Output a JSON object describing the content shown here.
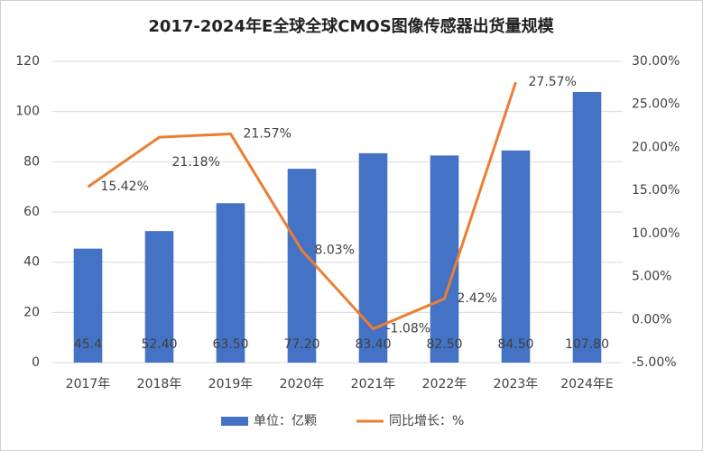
{
  "chart_data": {
    "type": "bar",
    "title": "2017-2024年E全球全球CMOS图像传感器出货量规模",
    "categories": [
      "2017年",
      "2018年",
      "2019年",
      "2020年",
      "2021年",
      "2022年",
      "2023年",
      "2024年E"
    ],
    "series": [
      {
        "name": "单位：亿颗",
        "color": "#4472c4",
        "type": "bar",
        "values": [
          45.4,
          52.4,
          63.5,
          77.2,
          83.4,
          82.5,
          84.5,
          107.8
        ],
        "value_labels": [
          "45.4",
          "52.40",
          "63.50",
          "77.20",
          "83.40",
          "82.50",
          "84.50",
          "107.80"
        ]
      },
      {
        "name": "同比增长：%",
        "color": "#ed7d31",
        "type": "line",
        "axis": "y2",
        "values": [
          15.42,
          21.18,
          21.57,
          8.03,
          -1.08,
          2.42,
          27.57,
          null
        ],
        "value_labels": [
          "15.42%",
          "21.18%",
          "21.57%",
          "8.03%",
          "-1.08%",
          "2.42%",
          "27.57%",
          null
        ]
      }
    ],
    "ylim": [
      0,
      120
    ],
    "yticks": [
      0,
      20,
      40,
      60,
      80,
      100,
      120
    ],
    "y2lim": [
      -5,
      30
    ],
    "y2ticks": [
      {
        "value": -5,
        "label": "-5.00%"
      },
      {
        "value": 0,
        "label": "0.00%"
      },
      {
        "value": 5,
        "label": "5.00%"
      },
      {
        "value": 10,
        "label": "10.00%"
      },
      {
        "value": 15,
        "label": "15.00%"
      },
      {
        "value": 20,
        "label": "20.00%"
      },
      {
        "value": 25,
        "label": "25.00%"
      },
      {
        "value": 30,
        "label": "30.00%"
      }
    ],
    "grid": true,
    "legend": "bottom"
  }
}
